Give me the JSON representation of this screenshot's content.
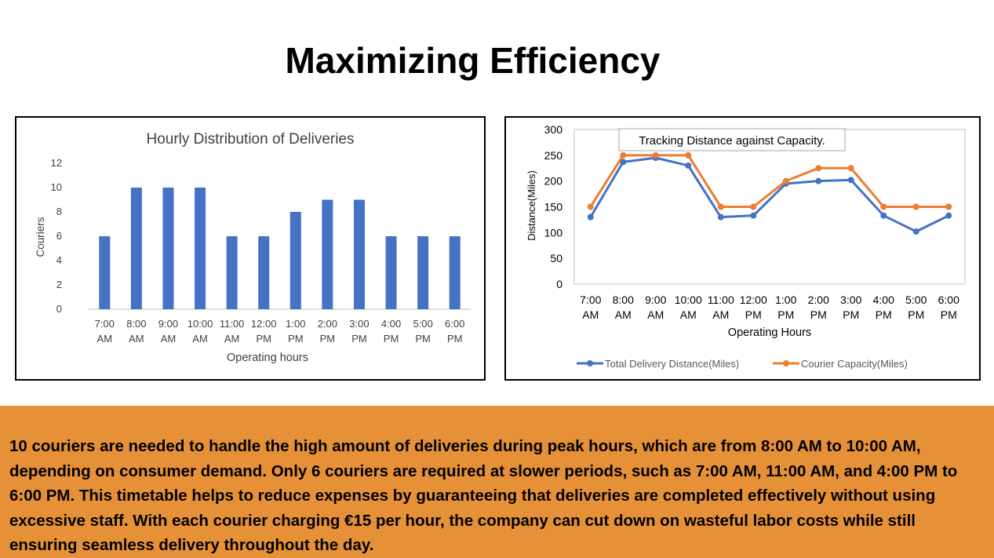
{
  "slide": {
    "title": "Maximizing Efficiency",
    "summary": "10 couriers are needed to handle the high amount of deliveries during peak hours, which are from 8:00 AM to 10:00 AM, depending on consumer demand. Only 6 couriers are required at slower periods, such as 7:00 AM, 11:00 AM, and 4:00 PM to 6:00 PM. This timetable helps to reduce expenses by guaranteeing that deliveries are completed effectively without using excessive staff. With each courier charging €15 per hour, the company can cut down on wasteful labor costs while still ensuring seamless delivery throughout the day."
  },
  "colors": {
    "blue": "#4472c4",
    "orange": "#ed7d31",
    "band": "#e69138"
  },
  "chart_data": [
    {
      "type": "bar",
      "title": "Hourly Distribution of Deliveries",
      "xlabel": "Operating hours",
      "ylabel": "Couriers",
      "categories": [
        [
          "7:00",
          "AM"
        ],
        [
          "8:00",
          "AM"
        ],
        [
          "9:00",
          "AM"
        ],
        [
          "10:00",
          "AM"
        ],
        [
          "11:00",
          "AM"
        ],
        [
          "12:00",
          "PM"
        ],
        [
          "1:00",
          "PM"
        ],
        [
          "2:00",
          "PM"
        ],
        [
          "3:00",
          "PM"
        ],
        [
          "4:00",
          "PM"
        ],
        [
          "5:00",
          "PM"
        ],
        [
          "6:00",
          "PM"
        ]
      ],
      "values": [
        6,
        10,
        10,
        10,
        6,
        6,
        8,
        9,
        9,
        6,
        6,
        6
      ],
      "ylim": [
        0,
        12
      ],
      "yticks": [
        "0",
        "2",
        "4",
        "6",
        "8",
        "10",
        "12"
      ],
      "grid": false,
      "legend": "none",
      "color": "#4472c4"
    },
    {
      "type": "line",
      "title": "Tracking Distance against Capacity.",
      "xlabel": "Operating Hours",
      "ylabel": "Distance(Miles)",
      "categories": [
        [
          "7:00",
          "AM"
        ],
        [
          "8:00",
          "AM"
        ],
        [
          "9:00",
          "AM"
        ],
        [
          "10:00",
          "AM"
        ],
        [
          "11:00",
          "AM"
        ],
        [
          "12:00",
          "PM"
        ],
        [
          "1:00",
          "PM"
        ],
        [
          "2:00",
          "PM"
        ],
        [
          "3:00",
          "PM"
        ],
        [
          "4:00",
          "PM"
        ],
        [
          "5:00",
          "PM"
        ],
        [
          "6:00",
          "PM"
        ]
      ],
      "series": [
        {
          "name": "Total Delivery Distance(Miles)",
          "values": [
            130,
            237,
            245,
            230,
            130,
            133,
            195,
            200,
            202,
            133,
            102,
            133
          ],
          "color": "#4472c4"
        },
        {
          "name": "Courier Capacity(Miles)",
          "values": [
            150,
            250,
            250,
            250,
            150,
            150,
            200,
            225,
            225,
            150,
            150,
            150
          ],
          "color": "#ed7d31"
        }
      ],
      "ylim": [
        0,
        300
      ],
      "yticks": [
        "0",
        "50",
        "100",
        "150",
        "200",
        "250",
        "300"
      ],
      "grid": false,
      "legend": "bottom"
    }
  ]
}
